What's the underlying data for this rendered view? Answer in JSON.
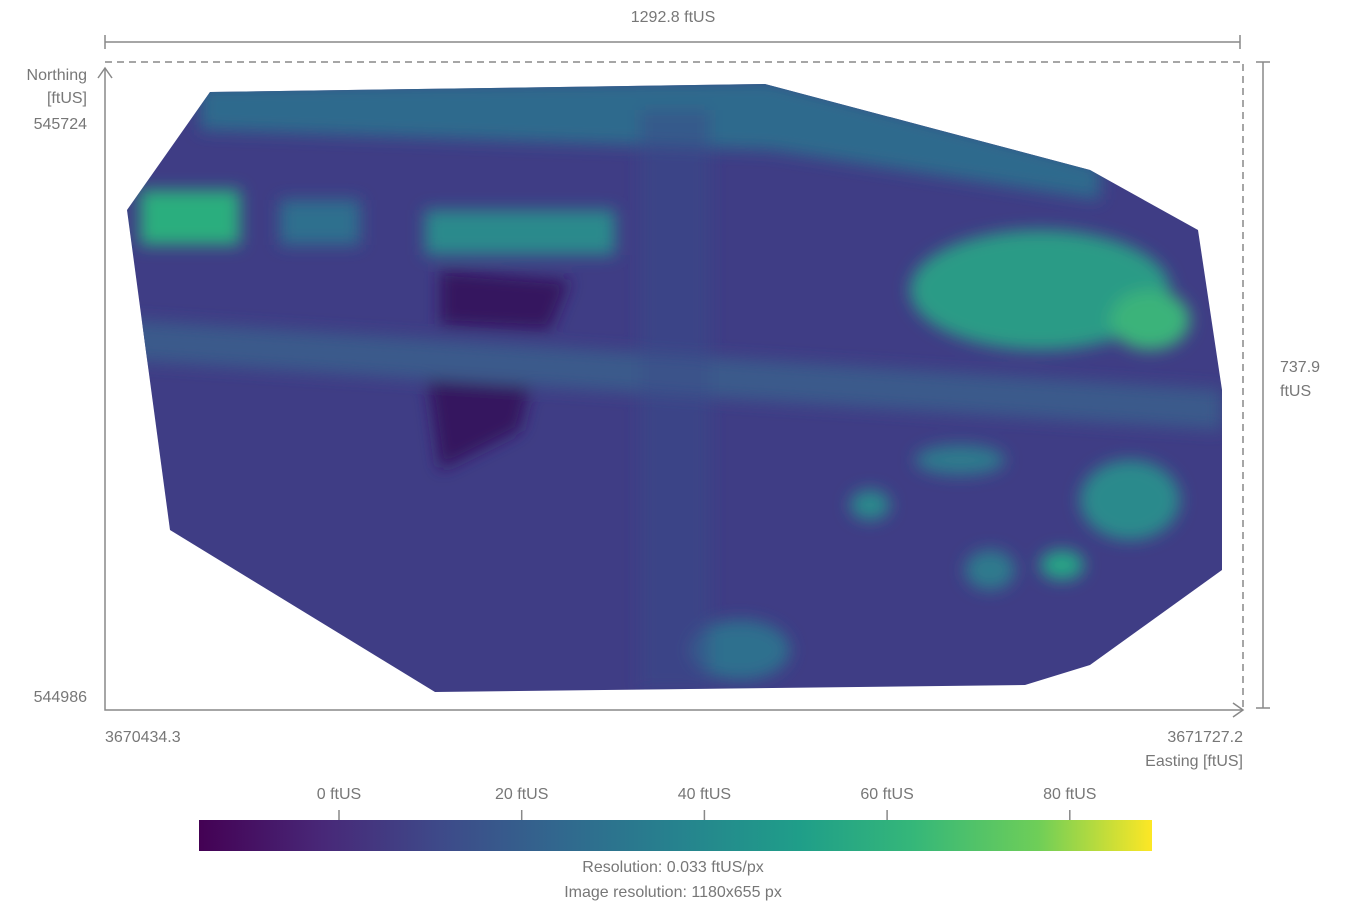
{
  "dimensions": {
    "width": "1292.8 ftUS",
    "height": [
      "737.9",
      "ftUS"
    ]
  },
  "axes": {
    "northing_label": [
      "Northing",
      "[ftUS]"
    ],
    "northing_max": "545724",
    "northing_min": "544986",
    "easting_min": "3670434.3",
    "easting_max": "3671727.2",
    "easting_label": "Easting [ftUS]"
  },
  "colorbar": {
    "labels": [
      "0 ftUS",
      "20 ftUS",
      "40 ftUS",
      "60 ftUS",
      "80 ftUS"
    ]
  },
  "footer": {
    "resolution": "Resolution: 0.033 ftUS/px",
    "image_resolution": "Image resolution: 1180x655 px"
  }
}
